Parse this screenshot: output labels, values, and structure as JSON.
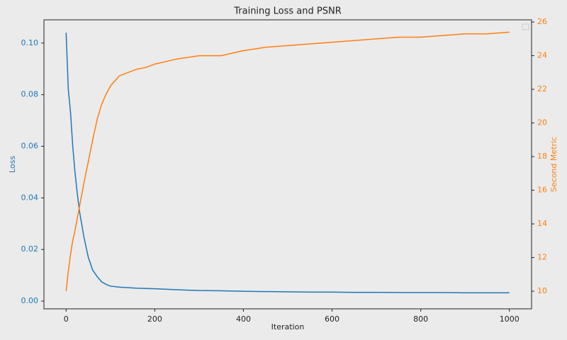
{
  "chart_data": {
    "type": "line",
    "title": "Training Loss and PSNR",
    "xlabel": "Iteration",
    "ylabel": "Loss",
    "y2label": "Second Metric",
    "x": [
      0,
      5,
      10,
      15,
      20,
      25,
      30,
      40,
      50,
      60,
      70,
      80,
      90,
      100,
      120,
      140,
      160,
      180,
      200,
      250,
      300,
      350,
      400,
      450,
      500,
      550,
      600,
      650,
      700,
      750,
      800,
      850,
      900,
      950,
      1000
    ],
    "series": [
      {
        "color": "#1f77b4",
        "axis": "y",
        "values": [
          0.104,
          0.082,
          0.073,
          0.06,
          0.05,
          0.042,
          0.035,
          0.025,
          0.017,
          0.012,
          0.0095,
          0.0075,
          0.0065,
          0.0058,
          0.0054,
          0.0052,
          0.005,
          0.0049,
          0.0048,
          0.0044,
          0.0041,
          0.004,
          0.0038,
          0.0037,
          0.0036,
          0.0035,
          0.0035,
          0.0034,
          0.0034,
          0.0033,
          0.0033,
          0.0033,
          0.0032,
          0.0032,
          0.0032
        ]
      },
      {
        "color": "#ff7f0e",
        "axis": "y2",
        "values": [
          10.0,
          11.2,
          12.2,
          13.0,
          13.6,
          14.3,
          15.0,
          16.4,
          17.7,
          19.0,
          20.2,
          21.1,
          21.7,
          22.2,
          22.8,
          23.0,
          23.2,
          23.3,
          23.5,
          23.8,
          24.0,
          24.0,
          24.3,
          24.5,
          24.6,
          24.7,
          24.8,
          24.9,
          25.0,
          25.1,
          25.1,
          25.2,
          25.3,
          25.3,
          25.4
        ]
      }
    ],
    "xlim": [
      -50,
      1050
    ],
    "xticks": [
      0,
      200,
      400,
      600,
      800,
      1000
    ],
    "ylim": [
      -0.003,
      0.109
    ],
    "yticks": [
      {
        "value": 0,
        "label": "0.00"
      },
      {
        "value": 0.02,
        "label": "0.02"
      },
      {
        "value": 0.04,
        "label": "0.04"
      },
      {
        "value": 0.06,
        "label": "0.06"
      },
      {
        "value": 0.08,
        "label": "0.08"
      },
      {
        "value": 0.1,
        "label": "0.10"
      }
    ],
    "y2lim": [
      8.95,
      26.13
    ],
    "y2ticks": [
      10,
      12,
      14,
      16,
      18,
      20,
      22,
      24,
      26
    ],
    "y_color": "#1f77b4",
    "y2_color": "#ff7f0e"
  }
}
